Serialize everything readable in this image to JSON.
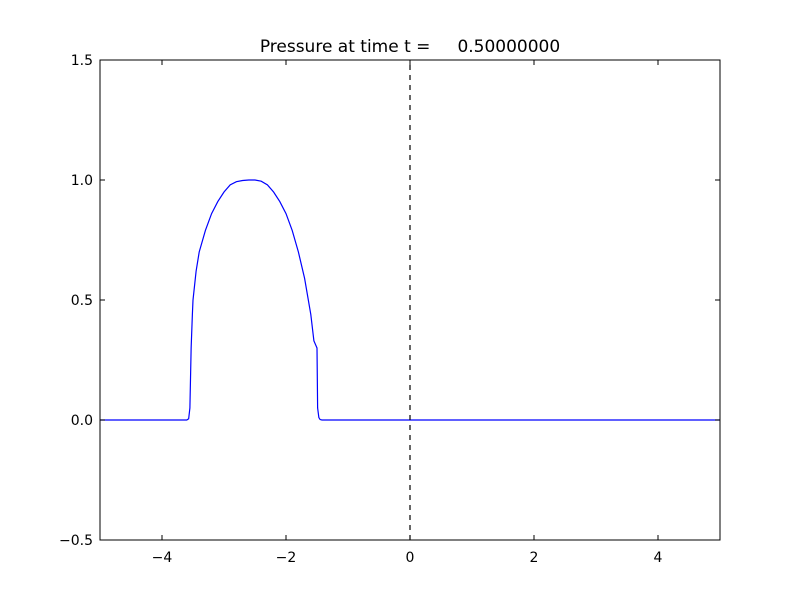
{
  "chart_data": {
    "type": "line",
    "title": "Pressure at time t =     0.50000000",
    "xlabel": "",
    "ylabel": "",
    "xlim": [
      -5,
      5
    ],
    "ylim": [
      -0.5,
      1.5
    ],
    "x_ticks": [
      -4,
      -2,
      0,
      2,
      4
    ],
    "x_tick_labels": [
      "−4",
      "−2",
      "0",
      "2",
      "4"
    ],
    "y_ticks": [
      -0.5,
      0.0,
      0.5,
      1.0,
      1.5
    ],
    "y_tick_labels": [
      "−0.5",
      "0.0",
      "0.5",
      "1.0",
      "1.5"
    ],
    "grid": false,
    "series": [
      {
        "color": "#0000ff",
        "linestyle": "solid",
        "x": [
          -5.0,
          -3.6,
          -3.57,
          -3.55,
          -3.53,
          -3.51,
          -3.5,
          -3.45,
          -3.4,
          -3.3,
          -3.2,
          -3.1,
          -3.0,
          -2.9,
          -2.8,
          -2.7,
          -2.6,
          -2.5,
          -2.4,
          -2.3,
          -2.2,
          -2.1,
          -2.0,
          -1.9,
          -1.8,
          -1.7,
          -1.6,
          -1.55,
          -1.5,
          -1.49,
          -1.47,
          -1.45,
          -1.42,
          -1.4,
          5.0
        ],
        "y": [
          0.0,
          0.0,
          0.005,
          0.05,
          0.3,
          0.44,
          0.5,
          0.62,
          0.7,
          0.79,
          0.86,
          0.91,
          0.95,
          0.98,
          0.993,
          0.998,
          1.0,
          1.0,
          0.995,
          0.98,
          0.95,
          0.91,
          0.86,
          0.79,
          0.7,
          0.59,
          0.44,
          0.33,
          0.3,
          0.05,
          0.01,
          0.002,
          0.0,
          0.0,
          0.0
        ]
      },
      {
        "color": "#000000",
        "linestyle": "dashed",
        "x": [
          0,
          0
        ],
        "y": [
          -0.5,
          1.5
        ]
      }
    ]
  }
}
